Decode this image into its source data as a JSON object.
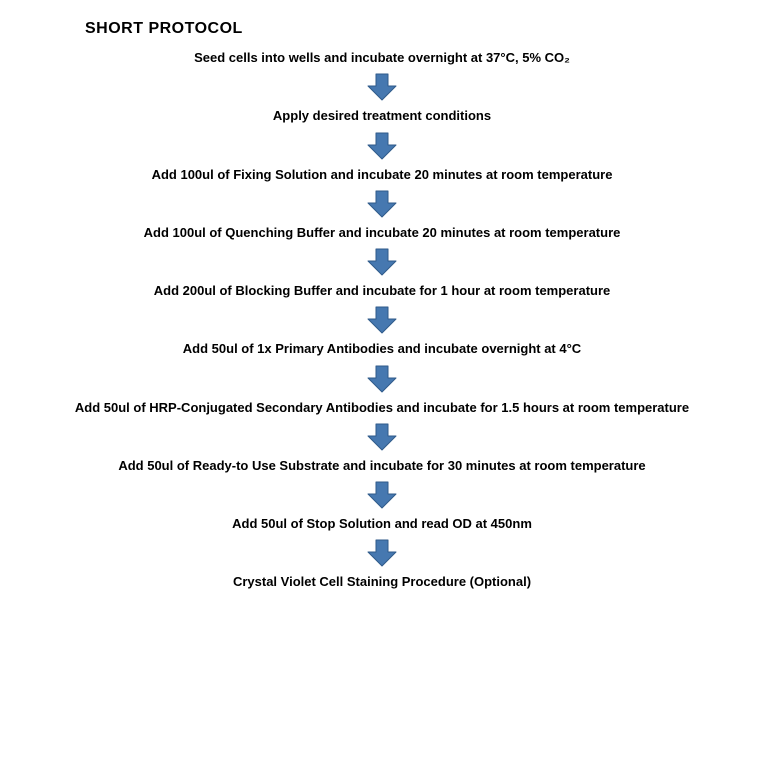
{
  "title": "SHORT PROTOCOL",
  "title_fontsize": 16,
  "title_color": "#000000",
  "step_fontsize": 13,
  "step_color": "#000000",
  "background_color": "#ffffff",
  "arrow": {
    "fill": "#4678b0",
    "stroke": "#2f5a8a",
    "stroke_width": 1,
    "width": 36,
    "height": 30
  },
  "flowchart": {
    "type": "flowchart",
    "steps": [
      {
        "label": "Seed cells into wells and incubate overnight at 37°C, 5% CO₂"
      },
      {
        "label": "Apply desired treatment conditions"
      },
      {
        "label": "Add 100ul of Fixing Solution and incubate 20 minutes at room temperature"
      },
      {
        "label": "Add 100ul of Quenching Buffer and incubate 20 minutes at room temperature"
      },
      {
        "label": "Add 200ul of Blocking Buffer and incubate for 1 hour at room temperature"
      },
      {
        "label": "Add 50ul of 1x Primary Antibodies and incubate overnight at 4°C"
      },
      {
        "label": "Add 50ul of HRP-Conjugated Secondary Antibodies and incubate for 1.5 hours at room temperature"
      },
      {
        "label": "Add 50ul of Ready-to Use Substrate and incubate for 30 minutes at room temperature"
      },
      {
        "label": "Add 50ul of Stop Solution and read OD at 450nm"
      },
      {
        "label": "Crystal Violet Cell Staining Procedure (Optional)"
      }
    ]
  }
}
